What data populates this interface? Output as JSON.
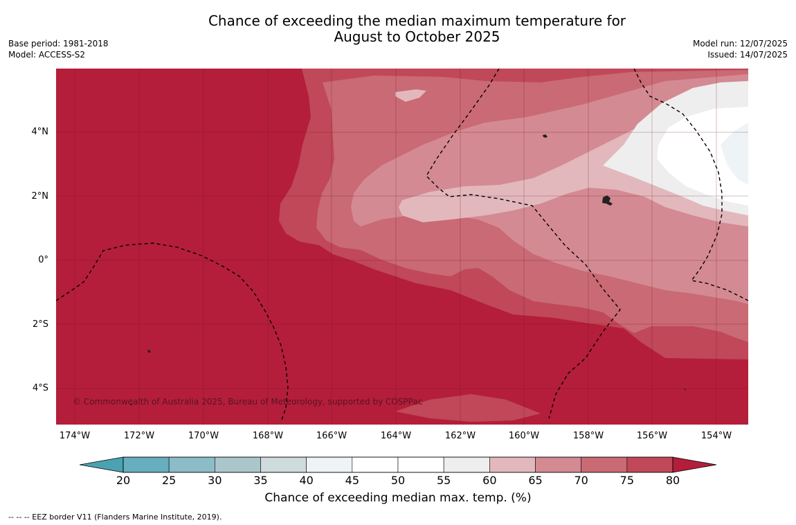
{
  "title_line1": "Chance of exceeding the median maximum temperature for",
  "title_line2": "August to October 2025",
  "meta_left": {
    "base_period": "Base period: 1981-2018",
    "model": "Model: ACCESS-S2"
  },
  "meta_right": {
    "model_run": "Model run: 12/07/2025",
    "issued": "Issued: 14/07/2025"
  },
  "copyright": "© Commonwealth of Australia 2025, Bureau of Meteorology, supported by COSPPac",
  "lat_labels": [
    "4°N",
    "2°N",
    "0°",
    "2°S",
    "4°S"
  ],
  "lon_labels": [
    "174°W",
    "172°W",
    "170°W",
    "168°W",
    "166°W",
    "164°W",
    "162°W",
    "160°W",
    "158°W",
    "156°W",
    "154°W"
  ],
  "colorbar": {
    "ticks": [
      "20",
      "25",
      "30",
      "35",
      "40",
      "45",
      "50",
      "55",
      "60",
      "65",
      "70",
      "75",
      "80"
    ],
    "colors": [
      "#67aebe",
      "#8bbcc7",
      "#abc6cb",
      "#cfdbdc",
      "#eef4f5",
      "#ffffff",
      "#ffffff",
      "#eeeeee",
      "#e2b8bd",
      "#d48a93",
      "#c96a74",
      "#c04858"
    ],
    "under_color": "#4ba2b2",
    "over_color": "#b41e3a",
    "label": "Chance of exceeding median max. temp. (%)"
  },
  "legend_note": "--  --  -- EEZ border V11 (Flanders Marine Institute, 2019)."
}
